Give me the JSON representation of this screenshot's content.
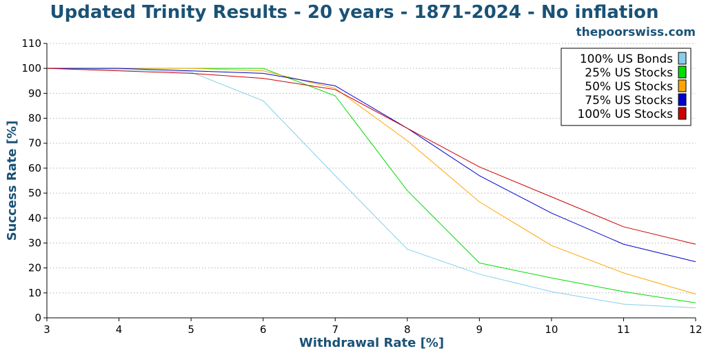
{
  "chart_data": {
    "type": "line",
    "title": "Updated Trinity Results - 20 years - 1871-2024 - No inflation",
    "subtitle": "thepoorswiss.com",
    "xlabel": "Withdrawal Rate [%]",
    "ylabel": "Success Rate [%]",
    "xlim": [
      3,
      12
    ],
    "ylim": [
      0,
      110
    ],
    "x_ticks": [
      "3",
      "4",
      "5",
      "6",
      "7",
      "8",
      "9",
      "10",
      "11",
      "12"
    ],
    "y_ticks": [
      "0",
      "10",
      "20",
      "30",
      "40",
      "50",
      "60",
      "70",
      "80",
      "90",
      "100",
      "110"
    ],
    "grid": "horizontal-dotted",
    "legend_position": "top-right",
    "x": [
      3,
      4,
      5,
      6,
      7,
      8,
      9,
      10,
      11,
      12
    ],
    "series": [
      {
        "name": "100% US Bonds",
        "color": "#87ceeb",
        "values": [
          100,
          99.5,
          98.5,
          87,
          57,
          27.5,
          17.5,
          10.5,
          5.5,
          4
        ]
      },
      {
        "name": "25% US Stocks",
        "color": "#00dd00",
        "values": [
          100,
          100,
          100,
          100,
          89,
          51,
          22,
          16,
          10.5,
          6
        ]
      },
      {
        "name": "50% US Stocks",
        "color": "#ffa500",
        "values": [
          100,
          100,
          100,
          99,
          92,
          71,
          46.5,
          29,
          18,
          9.5
        ]
      },
      {
        "name": "75% US Stocks",
        "color": "#0000cc",
        "values": [
          100,
          100,
          99,
          98,
          93,
          76,
          57,
          42,
          29.5,
          22.5
        ]
      },
      {
        "name": "100% US Stocks",
        "color": "#cc0000",
        "values": [
          100,
          99,
          98,
          96,
          91.5,
          76,
          60.5,
          48.5,
          36.5,
          29.5
        ]
      }
    ]
  }
}
